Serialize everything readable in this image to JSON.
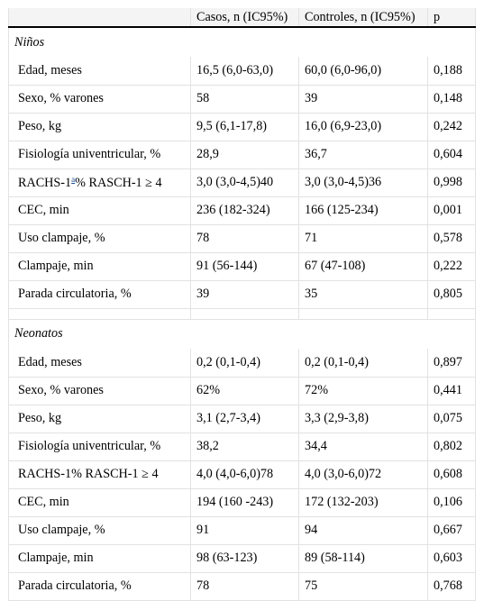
{
  "header": {
    "col1": "",
    "col2": "Casos, n (IC95%)",
    "col3": "Controles, n (IC95%)",
    "col4": "p"
  },
  "groups": [
    {
      "title": "Niños",
      "rows": [
        {
          "label": "Edad, meses",
          "casos": "16,5 (6,0-63,0)",
          "controles": "60,0 (6,0-96,0)",
          "p": "0,188"
        },
        {
          "label": "Sexo, % varones",
          "casos": "58",
          "controles": "39",
          "p": "0,148"
        },
        {
          "label": "Peso, kg",
          "casos": "9,5 (6,1-17,8)",
          "controles": "16,0 (6,9-23,0)",
          "p": "0,242"
        },
        {
          "label": "Fisiología univentricular, %",
          "casos": "28,9",
          "controles": "36,7",
          "p": "0,604"
        },
        {
          "label": "RACHS-1",
          "sup": "a",
          "label_tail": "% RASCH-1 ≥ 4",
          "casos": "3,0 (3,0-4,5)40",
          "controles": "3,0 (3,0-4,5)36",
          "p": "0,998"
        },
        {
          "label": "CEC, min",
          "casos": "236 (182-324)",
          "controles": "166 (125-234)",
          "p": "0,001"
        },
        {
          "label": "Uso clampaje, %",
          "casos": "78",
          "controles": "71",
          "p": "0,578"
        },
        {
          "label": "Clampaje, min",
          "casos": "91 (56-144)",
          "controles": "67 (47-108)",
          "p": "0,222"
        },
        {
          "label": "Parada circulatoria, %",
          "casos": "39",
          "controles": "35",
          "p": "0,805"
        }
      ]
    },
    {
      "title": "Neonatos",
      "rows": [
        {
          "label": "Edad, meses",
          "casos": "0,2 (0,1-0,4)",
          "controles": "0,2 (0,1-0,4)",
          "p": "0,897"
        },
        {
          "label": "Sexo, % varones",
          "casos": "62%",
          "controles": "72%",
          "p": "0,441"
        },
        {
          "label": "Peso, kg",
          "casos": "3,1 (2,7-3,4)",
          "controles": "3,3 (2,9-3,8)",
          "p": "0,075"
        },
        {
          "label": "Fisiología univentricular, %",
          "casos": "38,2",
          "controles": "34,4",
          "p": "0,802"
        },
        {
          "label": "RACHS-1% RASCH-1 ≥ 4",
          "casos": "4,0 (4,0-6,0)78",
          "controles": "4,0 (3,0-6,0)72",
          "p": "0,608"
        },
        {
          "label": "CEC, min",
          "casos": "194 (160 -243)",
          "controles": "172 (132-203)",
          "p": "0,106"
        },
        {
          "label": "Uso clampaje, %",
          "casos": "91",
          "controles": "94",
          "p": "0,667"
        },
        {
          "label": "Clampaje, min",
          "casos": "98 (63-123)",
          "controles": "89 (58-114)",
          "p": "0,603"
        },
        {
          "label": "Parada circulatoria, %",
          "casos": "78",
          "controles": "75",
          "p": "0,768"
        }
      ]
    }
  ]
}
